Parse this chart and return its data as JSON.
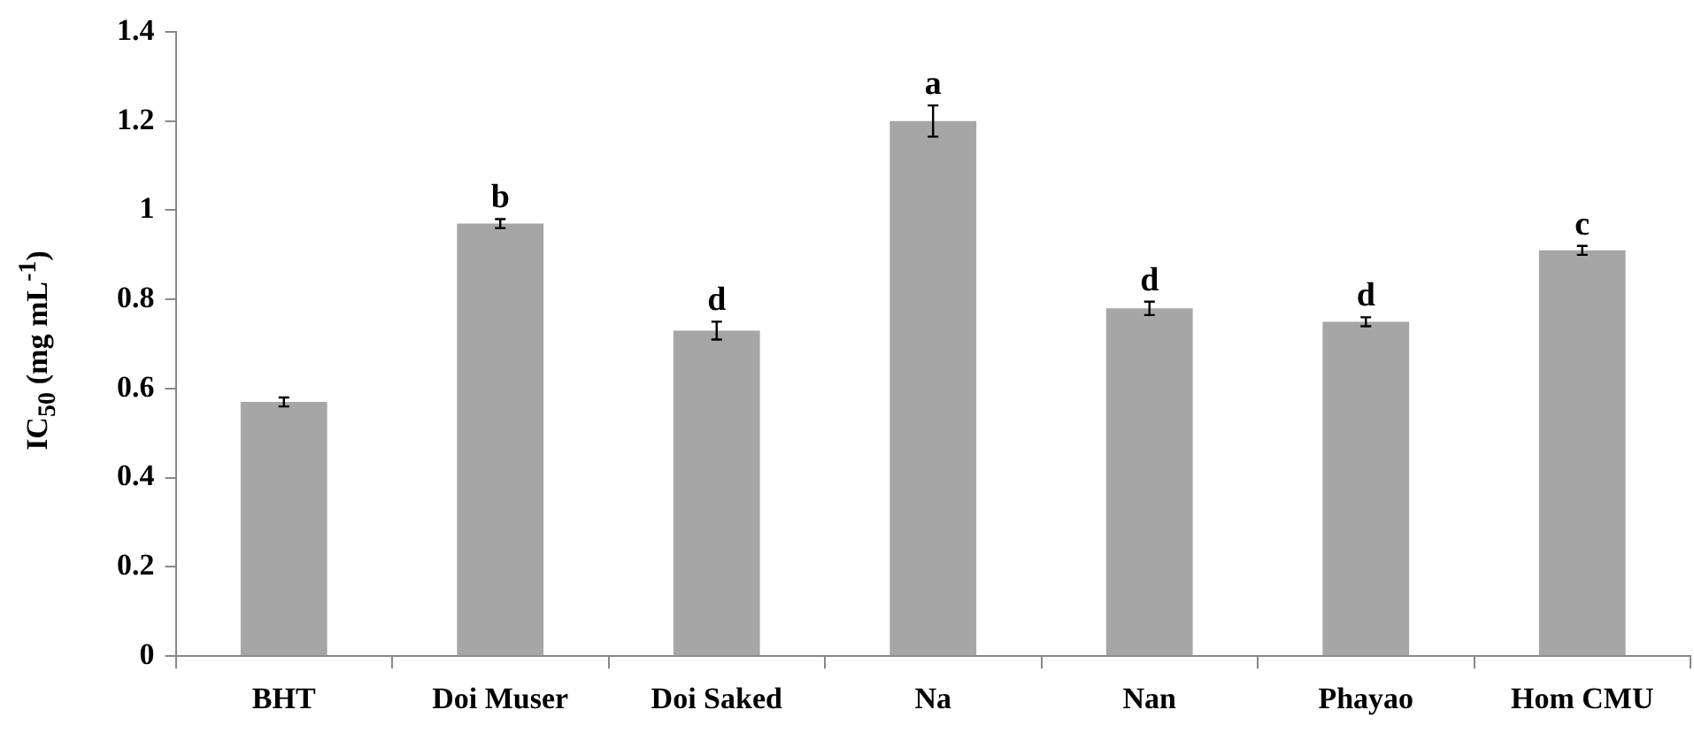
{
  "chart_data": {
    "type": "bar",
    "ylabel": "IC$_{50}$ (mg mL$^{-1}$)",
    "categories": [
      "BHT",
      "Doi Muser",
      "Doi Saked",
      "Na",
      "Nan",
      "Phayao",
      "Hom CMU"
    ],
    "values": [
      0.57,
      0.97,
      0.73,
      1.2,
      0.78,
      0.75,
      0.91
    ],
    "errors": [
      0.01,
      0.01,
      0.02,
      0.035,
      0.015,
      0.01,
      0.01
    ],
    "color": "#a6a6a6",
    "ylim": [
      0,
      1.4
    ],
    "yticks": [
      0,
      0.2,
      0.4,
      0.6,
      0.8,
      1,
      1.2,
      1.4
    ],
    "annotations": [
      {
        "text": "b",
        "x": "Doi Muser",
        "y": 0.98
      },
      {
        "text": "d",
        "x": "Doi Saked",
        "y": 0.75
      },
      {
        "text": "a",
        "x": "Na",
        "y": 1.235
      },
      {
        "text": "d",
        "x": "Nan",
        "y": 0.795
      },
      {
        "text": "d",
        "x": "Phayao",
        "y": 0.76
      },
      {
        "text": "c",
        "x": "Hom CMU",
        "y": 0.92
      }
    ]
  }
}
